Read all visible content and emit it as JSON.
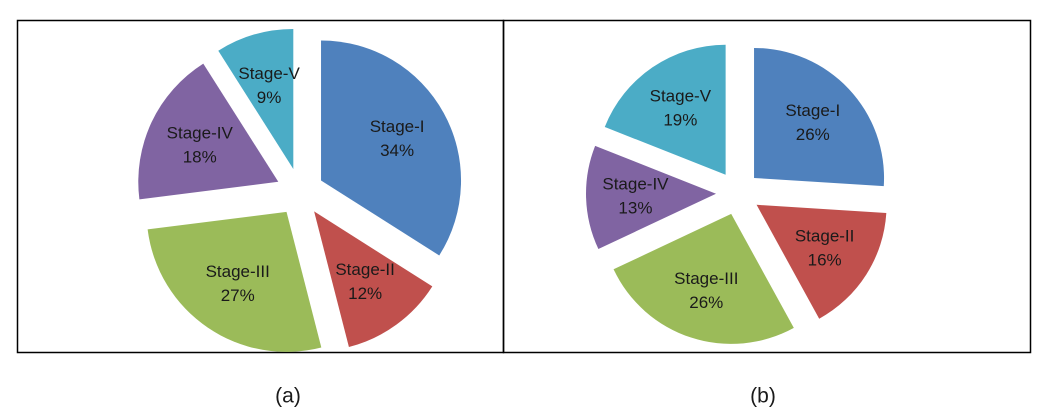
{
  "chart_data": [
    {
      "type": "pie",
      "caption": "(a)",
      "categories": [
        "Stage-I",
        "Stage-II",
        "Stage-III",
        "Stage-IV",
        "Stage-V"
      ],
      "values": [
        34,
        12,
        27,
        18,
        9
      ],
      "value_labels": [
        "34%",
        "12%",
        "27%",
        "18%",
        "9%"
      ],
      "colors": [
        "#4f81bd",
        "#c0504d",
        "#9bbb59",
        "#8064a2",
        "#4bacc6"
      ]
    },
    {
      "type": "pie",
      "caption": "(b)",
      "categories": [
        "Stage-I",
        "Stage-II",
        "Stage-III",
        "Stage-IV",
        "Stage-V"
      ],
      "values": [
        26,
        16,
        26,
        13,
        19
      ],
      "value_labels": [
        "26%",
        "16%",
        "26%",
        "13%",
        "19%"
      ],
      "colors": [
        "#4f81bd",
        "#c0504d",
        "#9bbb59",
        "#8064a2",
        "#4bacc6"
      ]
    }
  ]
}
